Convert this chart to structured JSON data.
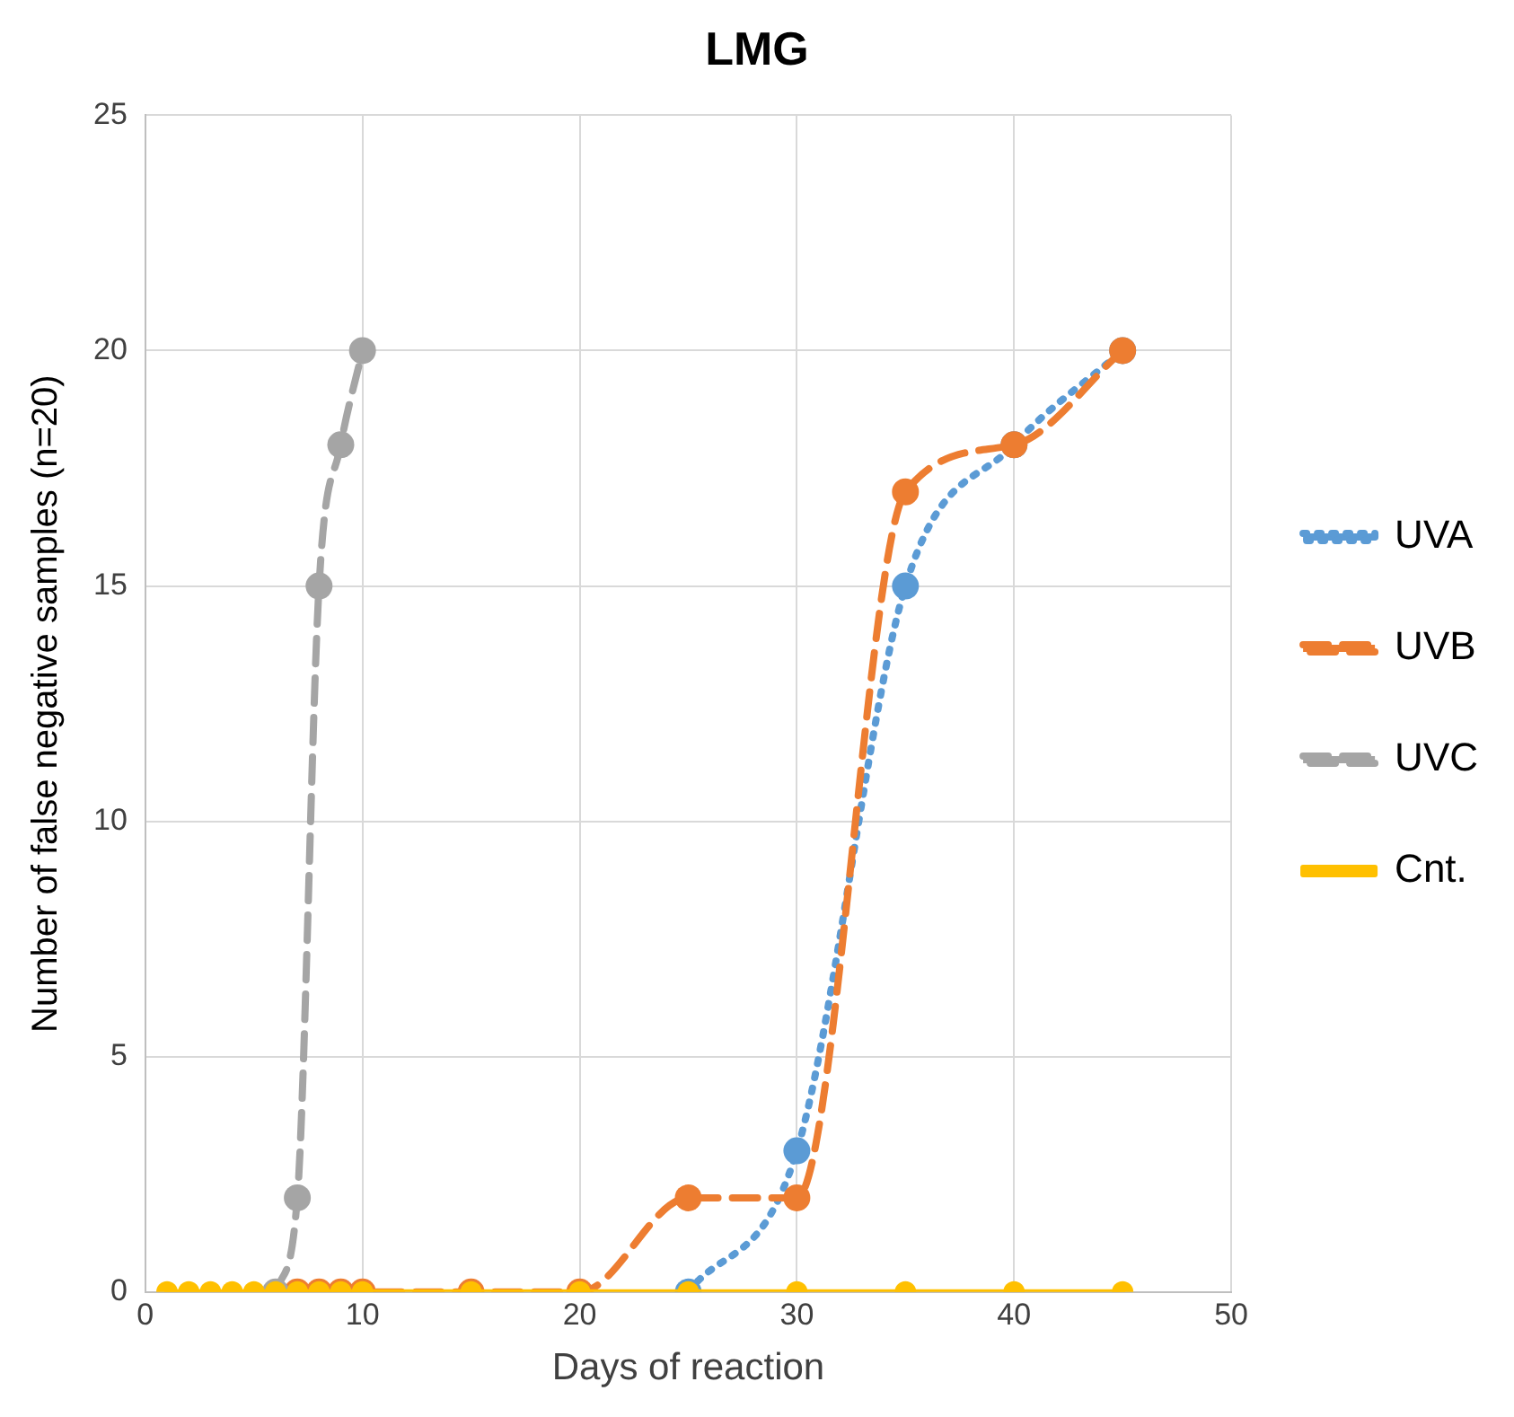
{
  "chart_data": {
    "type": "line",
    "title": "LMG",
    "xlabel": "Days of reaction",
    "ylabel": "Number of false negative samples (n=20)",
    "xlim": [
      0,
      50
    ],
    "xticks": [
      0,
      10,
      20,
      30,
      40,
      50
    ],
    "ylim": [
      0,
      25
    ],
    "yticks": [
      0,
      5,
      10,
      15,
      20,
      25
    ],
    "grid": true,
    "legend": "right",
    "marker": "circle",
    "series": [
      {
        "name": "UVA",
        "color": "#5b9bd5",
        "line_style": "dotted",
        "x": [
          25,
          30,
          35,
          40,
          45
        ],
        "values": [
          0,
          3,
          15,
          18,
          20
        ]
      },
      {
        "name": "UVB",
        "color": "#ed7d31",
        "line_style": "dashed",
        "x": [
          7,
          8,
          9,
          10,
          15,
          20,
          25,
          30,
          35,
          40,
          45
        ],
        "values": [
          0,
          0,
          0,
          0,
          0,
          0,
          2,
          2,
          17,
          18,
          20
        ]
      },
      {
        "name": "UVC",
        "color": "#a5a5a5",
        "line_style": "dashed",
        "x": [
          6,
          7,
          8,
          9,
          10
        ],
        "values": [
          0,
          2,
          15,
          18,
          20
        ]
      },
      {
        "name": "Cnt.",
        "color": "#ffc000",
        "line_style": "solid",
        "x": [
          1,
          2,
          3,
          4,
          5,
          6,
          7,
          8,
          9,
          10,
          15,
          20,
          25,
          30,
          35,
          40,
          45
        ],
        "values": [
          0,
          0,
          0,
          0,
          0,
          0,
          0,
          0,
          0,
          0,
          0,
          0,
          0,
          0,
          0,
          0,
          0
        ]
      }
    ]
  }
}
